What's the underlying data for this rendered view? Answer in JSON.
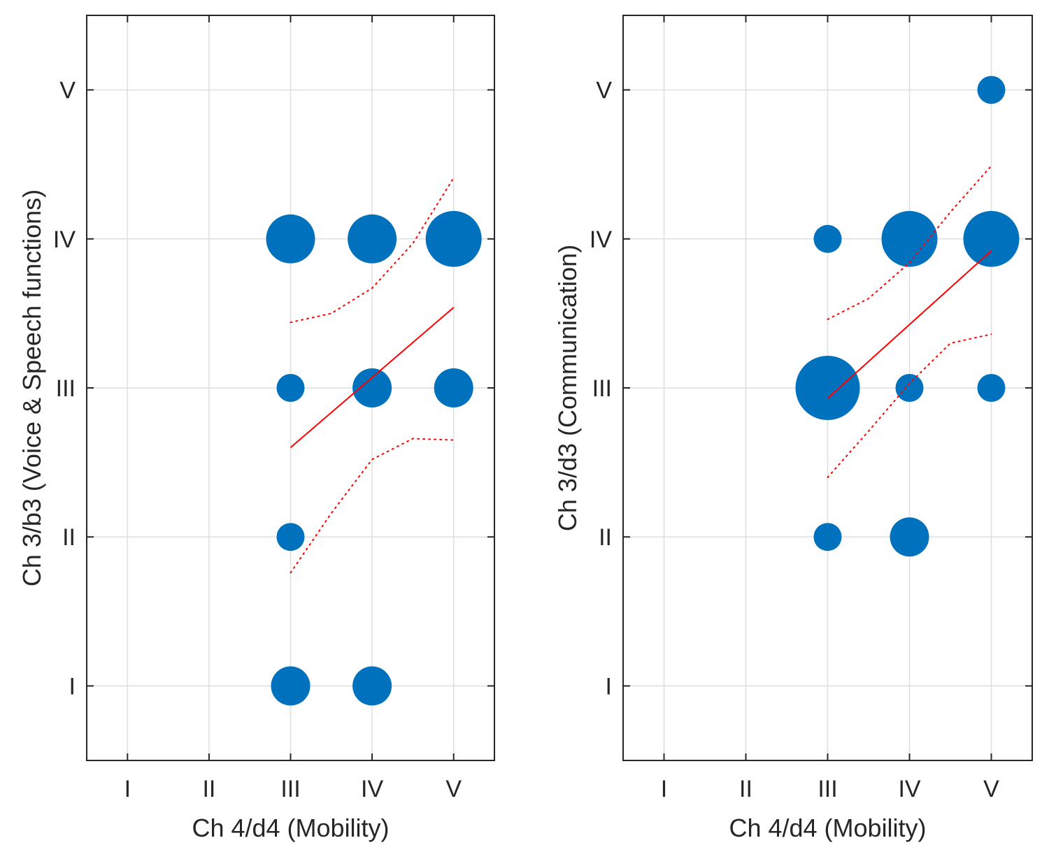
{
  "chart_data": [
    {
      "type": "scatter",
      "marker": "bubble",
      "xlabel": "Ch 4/d4 (Mobility)",
      "ylabel": "Ch 3/b3 (Voice & Speech functions)",
      "categories": [
        "I",
        "II",
        "III",
        "IV",
        "V"
      ],
      "xlim": [
        0.5,
        5.5
      ],
      "ylim": [
        0.5,
        5.5
      ],
      "grid": true,
      "points": [
        {
          "x": 3,
          "y": 4,
          "size": 3
        },
        {
          "x": 4,
          "y": 4,
          "size": 3
        },
        {
          "x": 5,
          "y": 4,
          "size": 4
        },
        {
          "x": 3,
          "y": 3,
          "size": 1
        },
        {
          "x": 4,
          "y": 3,
          "size": 2
        },
        {
          "x": 5,
          "y": 3,
          "size": 2
        },
        {
          "x": 3,
          "y": 2,
          "size": 1
        },
        {
          "x": 3,
          "y": 1,
          "size": 2
        },
        {
          "x": 4,
          "y": 1,
          "size": 2
        }
      ],
      "fit_line": {
        "x": [
          3,
          5
        ],
        "y": [
          2.6,
          3.54
        ]
      },
      "ci_upper": {
        "x": [
          3,
          3.5,
          4,
          4.5,
          5
        ],
        "y": [
          3.44,
          3.5,
          3.67,
          3.97,
          4.41
        ]
      },
      "ci_lower": {
        "x": [
          3,
          3.5,
          4,
          4.5,
          5
        ],
        "y": [
          1.76,
          2.16,
          2.52,
          2.66,
          2.65
        ]
      },
      "colors": {
        "marker": "#0072BD",
        "fit": "#FF0000"
      }
    },
    {
      "type": "scatter",
      "marker": "bubble",
      "xlabel": "Ch 4/d4 (Mobility)",
      "ylabel": "Ch 3/d3 (Communication)",
      "categories": [
        "I",
        "II",
        "III",
        "IV",
        "V"
      ],
      "xlim": [
        0.5,
        5.5
      ],
      "ylim": [
        0.5,
        5.5
      ],
      "grid": true,
      "points": [
        {
          "x": 5,
          "y": 5,
          "size": 1
        },
        {
          "x": 3,
          "y": 4,
          "size": 1
        },
        {
          "x": 4,
          "y": 4,
          "size": 4
        },
        {
          "x": 5,
          "y": 4,
          "size": 4
        },
        {
          "x": 3,
          "y": 3,
          "size": 5
        },
        {
          "x": 4,
          "y": 3,
          "size": 1
        },
        {
          "x": 5,
          "y": 3,
          "size": 1
        },
        {
          "x": 3,
          "y": 2,
          "size": 1
        },
        {
          "x": 4,
          "y": 2,
          "size": 2
        }
      ],
      "fit_line": {
        "x": [
          3,
          5
        ],
        "y": [
          2.93,
          3.92
        ]
      },
      "ci_upper": {
        "x": [
          3,
          3.5,
          4,
          4.5,
          5
        ],
        "y": [
          3.46,
          3.6,
          3.84,
          4.18,
          4.49
        ]
      },
      "ci_lower": {
        "x": [
          3,
          3.5,
          4,
          4.5,
          5
        ],
        "y": [
          2.4,
          2.71,
          3.03,
          3.3,
          3.36
        ]
      },
      "colors": {
        "marker": "#0072BD",
        "fit": "#FF0000"
      }
    }
  ]
}
